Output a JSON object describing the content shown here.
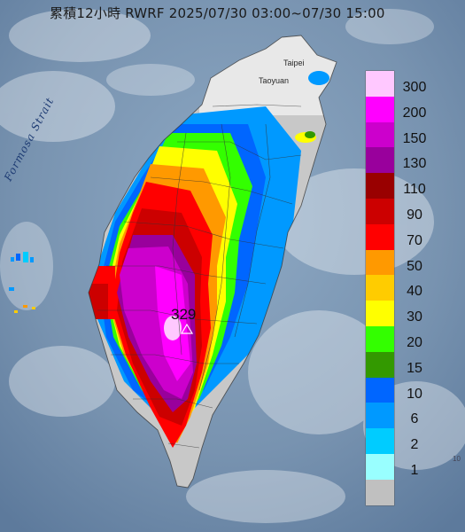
{
  "title": "累積12小時 RWRF 2025/07/30 03:00~07/30 15:00",
  "strait_label": "Formosa Strait",
  "cities": {
    "taipei": "Taipei",
    "taoyuan": "Taoyuan"
  },
  "max_value": "329",
  "corner_label": "10",
  "legend": {
    "items": [
      {
        "label": "300",
        "color": "#ffc8ff"
      },
      {
        "label": "200",
        "color": "#ff00ff"
      },
      {
        "label": "150",
        "color": "#cc00cc"
      },
      {
        "label": "130",
        "color": "#99009c"
      },
      {
        "label": "110",
        "color": "#990000"
      },
      {
        "label": "90",
        "color": "#cc0000"
      },
      {
        "label": "70",
        "color": "#ff0000"
      },
      {
        "label": "50",
        "color": "#ff9900"
      },
      {
        "label": "40",
        "color": "#ffcc00"
      },
      {
        "label": "30",
        "color": "#ffff00"
      },
      {
        "label": "20",
        "color": "#33ff00"
      },
      {
        "label": "15",
        "color": "#339900"
      },
      {
        "label": "10",
        "color": "#0066ff"
      },
      {
        "label": "6",
        "color": "#0099ff"
      },
      {
        "label": "2",
        "color": "#00ccff"
      },
      {
        "label": "1",
        "color": "#99ffff"
      },
      {
        "label": "",
        "color": "#c0c0c0"
      }
    ]
  }
}
